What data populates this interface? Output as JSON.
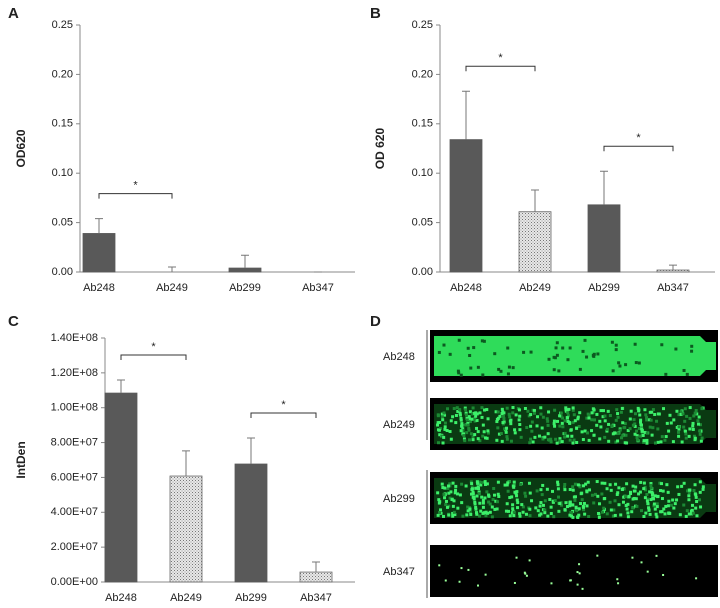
{
  "chart_data": [
    {
      "type": "bar",
      "panel": "A",
      "y_label": "OD620",
      "categories": [
        "Ab248",
        "Ab249",
        "Ab299",
        "Ab347"
      ],
      "values": [
        0.039,
        0,
        0.004,
        0
      ],
      "errors": [
        0.015,
        0.005,
        0.013,
        0
      ],
      "fills": [
        "solid",
        "dotted",
        "solid",
        "dotted"
      ],
      "color": "#595959",
      "ylim": [
        0,
        0.25
      ],
      "yticks": [
        {
          "value": 0,
          "label": "0.00"
        },
        {
          "value": 0.05,
          "label": "0.05"
        },
        {
          "value": 0.1,
          "label": "0.10"
        },
        {
          "value": 0.15,
          "label": "0.15"
        },
        {
          "value": 0.2,
          "label": "0.20"
        },
        {
          "value": 0.25,
          "label": "0.25"
        }
      ],
      "annotations": [
        {
          "text": "*",
          "between": [
            "Ab248",
            "Ab249"
          ]
        }
      ]
    },
    {
      "type": "bar",
      "panel": "B",
      "y_label": "OD 620",
      "categories": [
        "Ab248",
        "Ab249",
        "Ab299",
        "Ab347"
      ],
      "values": [
        0.134,
        0.061,
        0.068,
        0.002
      ],
      "errors": [
        0.049,
        0.022,
        0.034,
        0.005
      ],
      "fills": [
        "solid",
        "dotted",
        "solid",
        "dotted"
      ],
      "color": "#595959",
      "ylim": [
        0,
        0.25
      ],
      "yticks": [
        {
          "value": 0,
          "label": "0.00"
        },
        {
          "value": 0.05,
          "label": "0.05"
        },
        {
          "value": 0.1,
          "label": "0.10"
        },
        {
          "value": 0.15,
          "label": "0.15"
        },
        {
          "value": 0.2,
          "label": "0.20"
        },
        {
          "value": 0.25,
          "label": "0.25"
        }
      ],
      "annotations": [
        {
          "text": "*",
          "between": [
            "Ab248",
            "Ab249"
          ]
        },
        {
          "text": "*",
          "between": [
            "Ab299",
            "Ab347"
          ]
        }
      ]
    },
    {
      "type": "bar",
      "panel": "C",
      "y_label": "IntDen",
      "categories": [
        "Ab248",
        "Ab249",
        "Ab299",
        "Ab347"
      ],
      "values": [
        108400000,
        60800000,
        67700000,
        5700000
      ],
      "errors": [
        7500000,
        14400000,
        14900000,
        5800000
      ],
      "fills": [
        "solid",
        "dotted",
        "solid",
        "dotted"
      ],
      "color": "#595959",
      "ylim": [
        0,
        140000000
      ],
      "yticks": [
        {
          "value": 0,
          "label": "0.00E+00"
        },
        {
          "value": 20000000,
          "label": "2.00E+07"
        },
        {
          "value": 40000000,
          "label": "4.00E+07"
        },
        {
          "value": 60000000,
          "label": "6.00E+07"
        },
        {
          "value": 80000000,
          "label": "8.00E+07"
        },
        {
          "value": 100000000,
          "label": "1.00E+08"
        },
        {
          "value": 120000000,
          "label": "1.20E+08"
        },
        {
          "value": 140000000,
          "label": "1.40E+08"
        }
      ],
      "annotations": [
        {
          "text": "*",
          "between": [
            "Ab248",
            "Ab249"
          ]
        },
        {
          "text": "*",
          "between": [
            "Ab299",
            "Ab347"
          ]
        }
      ]
    }
  ],
  "image_panel": {
    "panel": "D",
    "rows": [
      "Ab248",
      "Ab249",
      "Ab299",
      "Ab347"
    ]
  }
}
